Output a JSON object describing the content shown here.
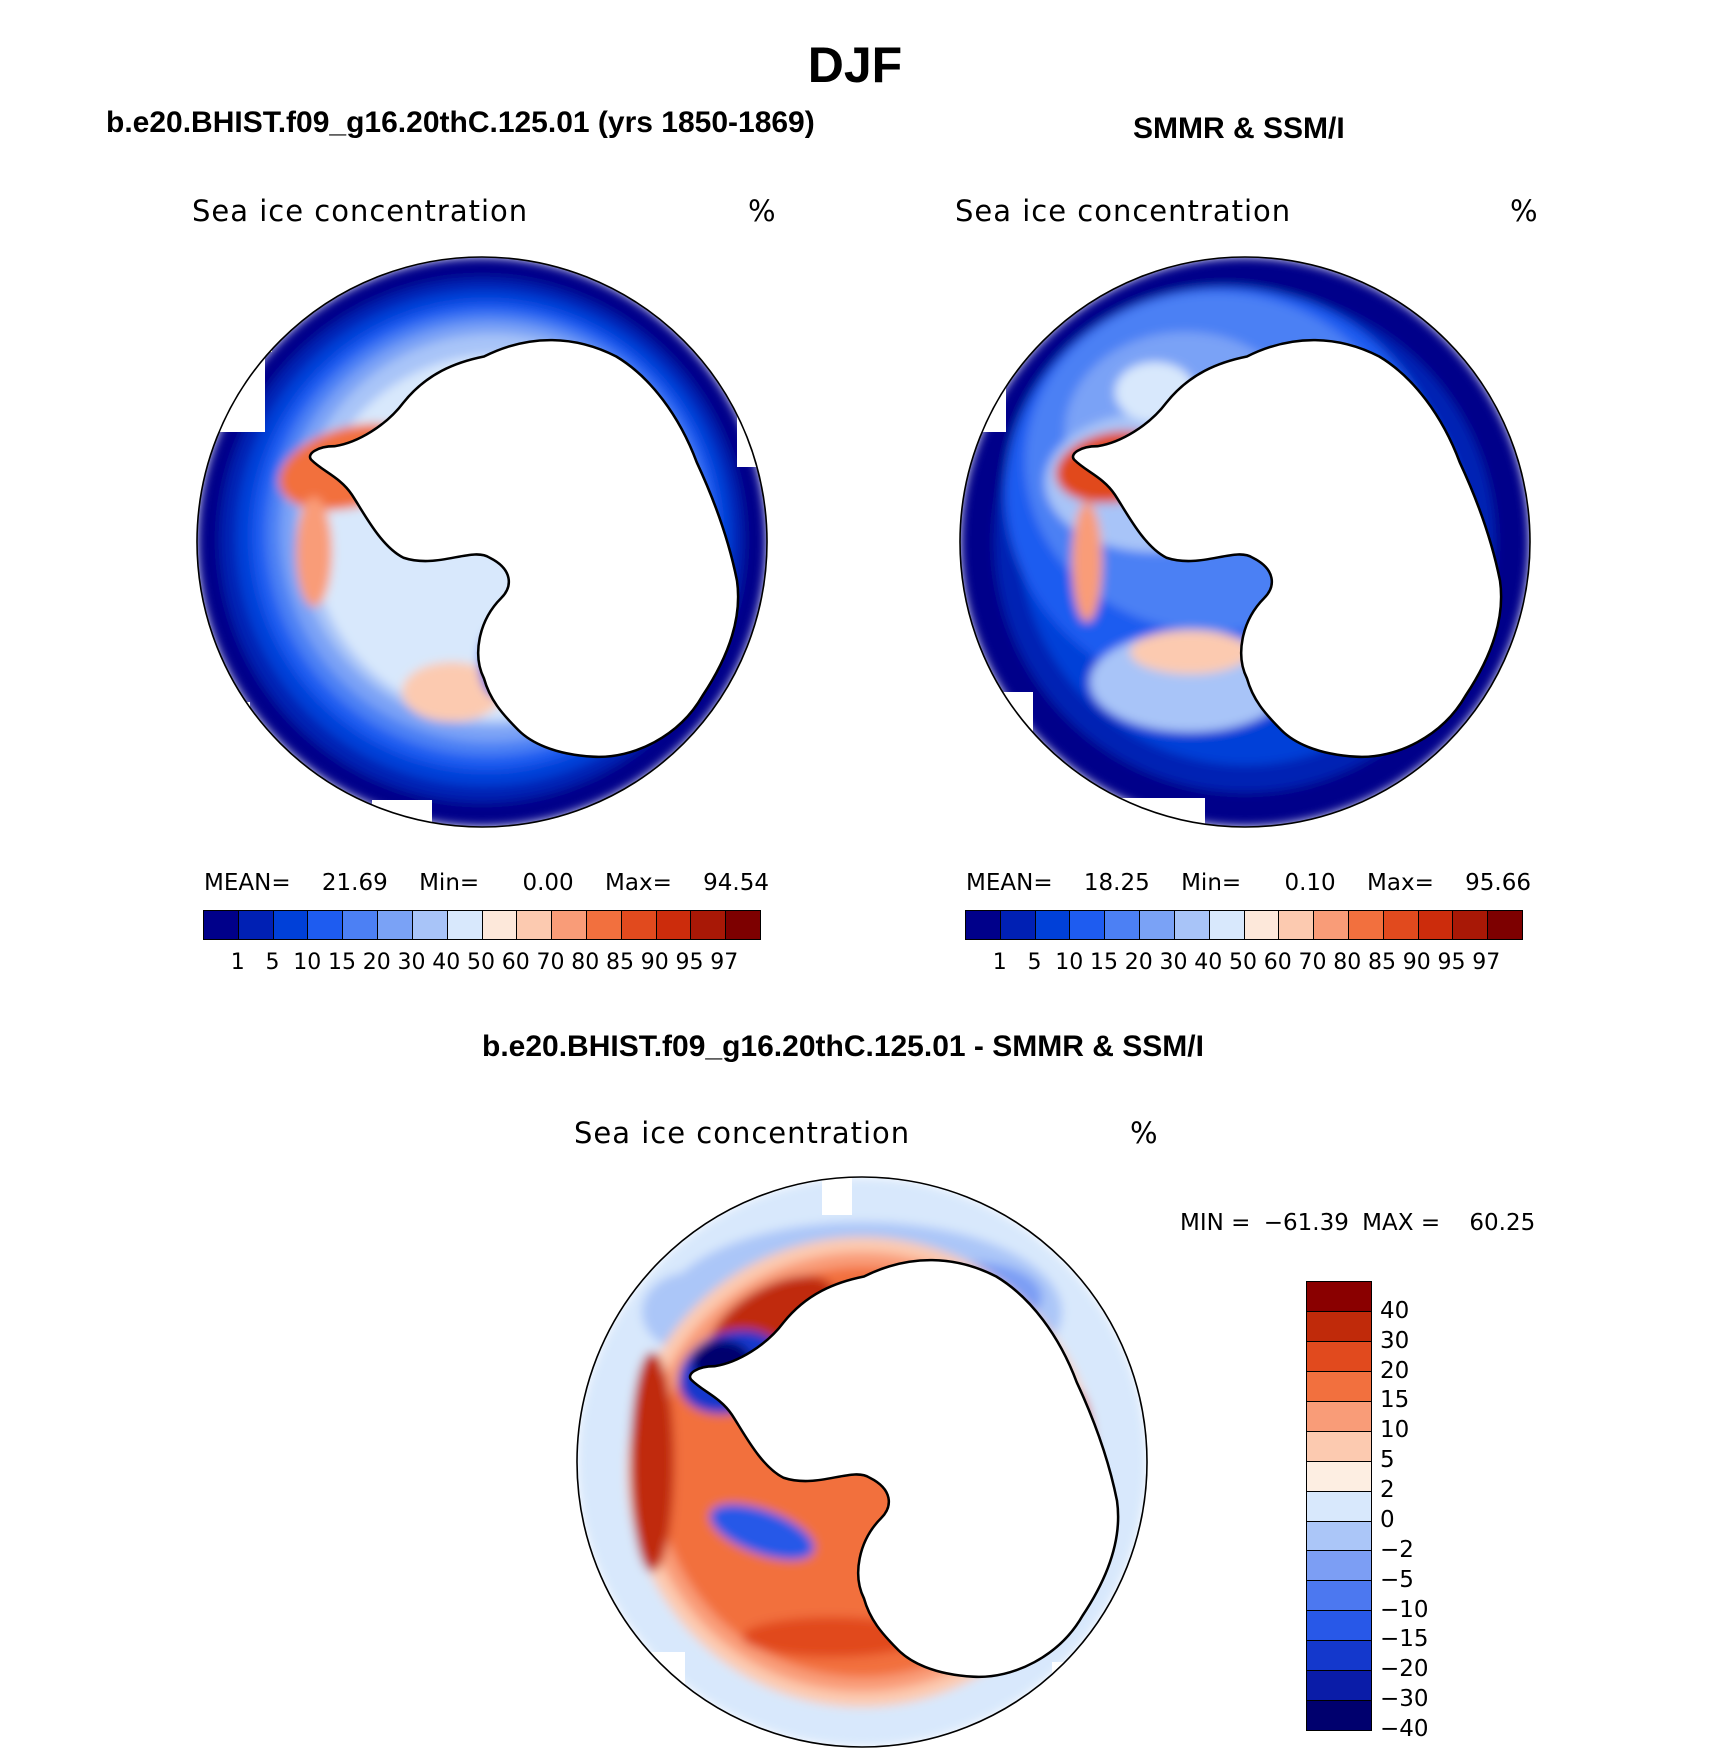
{
  "figure": {
    "title": "DJF"
  },
  "colors": {
    "seq_scale": [
      "#00008a",
      "#0020b4",
      "#0040d8",
      "#1e5cf0",
      "#4c80f4",
      "#7aa2f6",
      "#a8c4f8",
      "#d8e8fc",
      "#fde8da",
      "#fccab0",
      "#f99c78",
      "#f2703e",
      "#e14a1e",
      "#cc2c0c",
      "#a81806",
      "#7d0000"
    ],
    "div_scale": [
      "#00006e",
      "#0a1ca8",
      "#1438cc",
      "#2858e8",
      "#4c78f0",
      "#7c9ef4",
      "#abc6f8",
      "#d8e8fc",
      "#fdeee2",
      "#fccab0",
      "#f99c78",
      "#f2703e",
      "#e14a1e",
      "#c02a0a",
      "#8a0000"
    ]
  },
  "panels": [
    {
      "id": "model",
      "subtitle": "b.e20.BHIST.f09_g16.20thC.125.01 (yrs 1850-1869)",
      "plot_title": "Sea ice concentration",
      "units": "%",
      "stats": {
        "mean_label": "MEAN=",
        "mean": "21.69",
        "min_label": "Min=",
        "min": "0.00",
        "max_label": "Max=",
        "max": "94.54"
      },
      "colorbar_ticks": [
        "1",
        "5",
        "10",
        "15",
        "20",
        "30",
        "40",
        "50",
        "60",
        "70",
        "80",
        "85",
        "90",
        "95",
        "97"
      ]
    },
    {
      "id": "obs",
      "subtitle": "SMMR & SSM/I",
      "plot_title": "Sea ice concentration",
      "units": "%",
      "stats": {
        "mean_label": "MEAN=",
        "mean": "18.25",
        "min_label": "Min=",
        "min": "0.10",
        "max_label": "Max=",
        "max": "95.66"
      },
      "colorbar_ticks": [
        "1",
        "5",
        "10",
        "15",
        "20",
        "30",
        "40",
        "50",
        "60",
        "70",
        "80",
        "85",
        "90",
        "95",
        "97"
      ]
    },
    {
      "id": "diff",
      "subtitle": "b.e20.BHIST.f09_g16.20thC.125.01 - SMMR & SSM/I",
      "plot_title": "Sea ice concentration",
      "units": "%",
      "stats": {
        "min_label": "MIN =",
        "min": "−61.39",
        "max_label": "MAX =",
        "max": "60.25"
      },
      "colorbar_ticks": [
        "40",
        "30",
        "20",
        "15",
        "10",
        "5",
        "2",
        "0",
        "−2",
        "−5",
        "−10",
        "−15",
        "−20",
        "−30",
        "−40"
      ]
    }
  ]
}
